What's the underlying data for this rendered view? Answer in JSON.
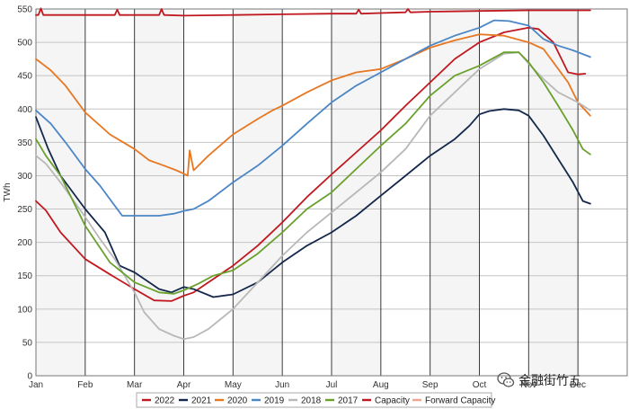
{
  "chart_data": {
    "type": "line",
    "title": "",
    "ylabel": "TWh",
    "xlabel": "",
    "ylim": [
      0,
      550
    ],
    "yticks": [
      0,
      50,
      100,
      150,
      200,
      250,
      300,
      350,
      400,
      450,
      500,
      550
    ],
    "xlim": [
      0,
      12
    ],
    "xticks": [
      {
        "label": "Jan",
        "x": 0
      },
      {
        "label": "Feb",
        "x": 1
      },
      {
        "label": "Mar",
        "x": 2
      },
      {
        "label": "Apr",
        "x": 3
      },
      {
        "label": "May",
        "x": 4
      },
      {
        "label": "Jun",
        "x": 5
      },
      {
        "label": "Jul",
        "x": 6
      },
      {
        "label": "Aug",
        "x": 7
      },
      {
        "label": "Sep",
        "x": 8
      },
      {
        "label": "Oct",
        "x": 9
      },
      {
        "label": "Nov",
        "x": 10
      },
      {
        "label": "Dec",
        "x": 11
      }
    ],
    "grid": true,
    "legend_position": "bottom",
    "series": [
      {
        "name": "2022",
        "color": "#c0181f",
        "x": [
          0,
          0.2,
          0.5,
          1.0,
          1.5,
          2.0,
          2.4,
          2.75,
          3.0,
          3.2,
          3.5,
          4.0,
          4.5,
          5.0,
          5.5,
          6.0,
          6.5,
          7.0,
          7.5,
          8.0,
          8.5,
          9.0,
          9.5,
          10.0,
          10.2,
          10.5,
          10.8,
          11.0,
          11.15
        ],
        "y": [
          262,
          248,
          215,
          175,
          152,
          130,
          113,
          112,
          120,
          125,
          140,
          165,
          195,
          230,
          268,
          302,
          335,
          368,
          405,
          440,
          475,
          500,
          515,
          522,
          520,
          500,
          455,
          452,
          453
        ]
      },
      {
        "name": "2021",
        "color": "#14284b",
        "x": [
          0,
          0.25,
          0.5,
          1.0,
          1.4,
          1.7,
          2.0,
          2.3,
          2.5,
          2.75,
          3.0,
          3.2,
          3.6,
          4.0,
          4.5,
          5.0,
          5.5,
          6.0,
          6.5,
          7.0,
          7.5,
          8.0,
          8.5,
          8.8,
          9.0,
          9.2,
          9.5,
          9.8,
          10.0,
          10.3,
          10.6,
          10.9,
          11.1,
          11.25
        ],
        "y": [
          388,
          340,
          300,
          250,
          215,
          165,
          155,
          140,
          130,
          125,
          133,
          130,
          118,
          122,
          140,
          170,
          195,
          215,
          240,
          270,
          300,
          330,
          355,
          375,
          392,
          397,
          400,
          398,
          390,
          360,
          325,
          290,
          262,
          258
        ]
      },
      {
        "name": "2020",
        "color": "#e87722",
        "x": [
          0,
          0.3,
          0.6,
          1.0,
          1.5,
          2.0,
          2.3,
          2.6,
          2.85,
          3.0,
          3.08,
          3.12,
          3.2,
          3.5,
          4.0,
          4.5,
          4.8,
          5.0,
          5.5,
          6.0,
          6.5,
          7.0,
          7.5,
          8.0,
          8.5,
          9.0,
          9.5,
          10.0,
          10.3,
          10.5,
          10.8,
          11.0,
          11.25
        ],
        "y": [
          475,
          458,
          435,
          395,
          362,
          340,
          323,
          315,
          308,
          303,
          300,
          338,
          308,
          330,
          362,
          385,
          398,
          405,
          425,
          443,
          455,
          460,
          475,
          492,
          503,
          512,
          510,
          500,
          490,
          470,
          440,
          410,
          390
        ]
      },
      {
        "name": "2019",
        "color": "#4b86c6",
        "x": [
          0,
          0.3,
          0.6,
          1.0,
          1.3,
          1.6,
          1.75,
          2.0,
          2.5,
          2.8,
          3.0,
          3.2,
          3.5,
          4.0,
          4.5,
          5.0,
          5.5,
          6.0,
          6.5,
          7.0,
          7.5,
          8.0,
          8.5,
          9.0,
          9.3,
          9.6,
          10.0,
          10.3,
          10.6,
          10.9,
          11.25
        ],
        "y": [
          398,
          378,
          350,
          310,
          285,
          255,
          240,
          240,
          240,
          243,
          247,
          250,
          262,
          290,
          315,
          345,
          378,
          410,
          435,
          455,
          475,
          495,
          510,
          522,
          533,
          532,
          525,
          505,
          495,
          488,
          478
        ]
      },
      {
        "name": "2018",
        "color": "#b8b8b8",
        "x": [
          0,
          0.2,
          0.5,
          1.0,
          1.3,
          1.6,
          1.8,
          2.0,
          2.2,
          2.5,
          2.8,
          3.0,
          3.2,
          3.5,
          4.0,
          4.5,
          5.0,
          5.5,
          6.0,
          6.5,
          7.0,
          7.5,
          8.0,
          8.5,
          9.0,
          9.5,
          9.8,
          10.0,
          10.3,
          10.6,
          11.0,
          11.25
        ],
        "y": [
          330,
          318,
          290,
          238,
          205,
          175,
          150,
          125,
          95,
          70,
          60,
          55,
          58,
          70,
          100,
          140,
          180,
          215,
          245,
          275,
          305,
          340,
          390,
          425,
          460,
          483,
          485,
          468,
          445,
          425,
          410,
          398
        ]
      },
      {
        "name": "2017",
        "color": "#6aa02c",
        "x": [
          0,
          0.2,
          0.5,
          1.0,
          1.5,
          2.0,
          2.5,
          2.8,
          3.0,
          3.3,
          3.6,
          4.0,
          4.5,
          5.0,
          5.5,
          6.0,
          6.5,
          7.0,
          7.5,
          8.0,
          8.5,
          9.0,
          9.5,
          9.8,
          10.0,
          10.3,
          10.6,
          10.9,
          11.1,
          11.25
        ],
        "y": [
          355,
          330,
          300,
          225,
          170,
          140,
          125,
          123,
          128,
          138,
          150,
          158,
          183,
          215,
          250,
          275,
          310,
          345,
          378,
          420,
          450,
          465,
          485,
          485,
          470,
          440,
          405,
          368,
          340,
          332
        ]
      },
      {
        "name": "Capacity",
        "color": "#c0181f",
        "x": [
          0,
          0.05,
          0.1,
          0.15,
          0.25,
          1.0,
          1.6,
          1.65,
          1.7,
          2.0,
          2.5,
          2.55,
          2.6,
          3.0,
          4.0,
          5.0,
          6.0,
          6.5,
          6.55,
          6.6,
          7.0,
          7.5,
          7.55,
          7.6,
          8.0,
          9.0,
          10.0,
          11.0,
          11.25
        ],
        "y": [
          541,
          541,
          551,
          541,
          541,
          541,
          541,
          549,
          541,
          541,
          541,
          550,
          541,
          540,
          541,
          542,
          543,
          543,
          549,
          543,
          544,
          545,
          550,
          545,
          546,
          547,
          548,
          548,
          548
        ]
      },
      {
        "name": "Forward Capacity",
        "color": "#f2a48e",
        "x": [],
        "y": []
      }
    ]
  },
  "watermark": {
    "text": "金融街竹五",
    "icon": "wechat-icon"
  }
}
